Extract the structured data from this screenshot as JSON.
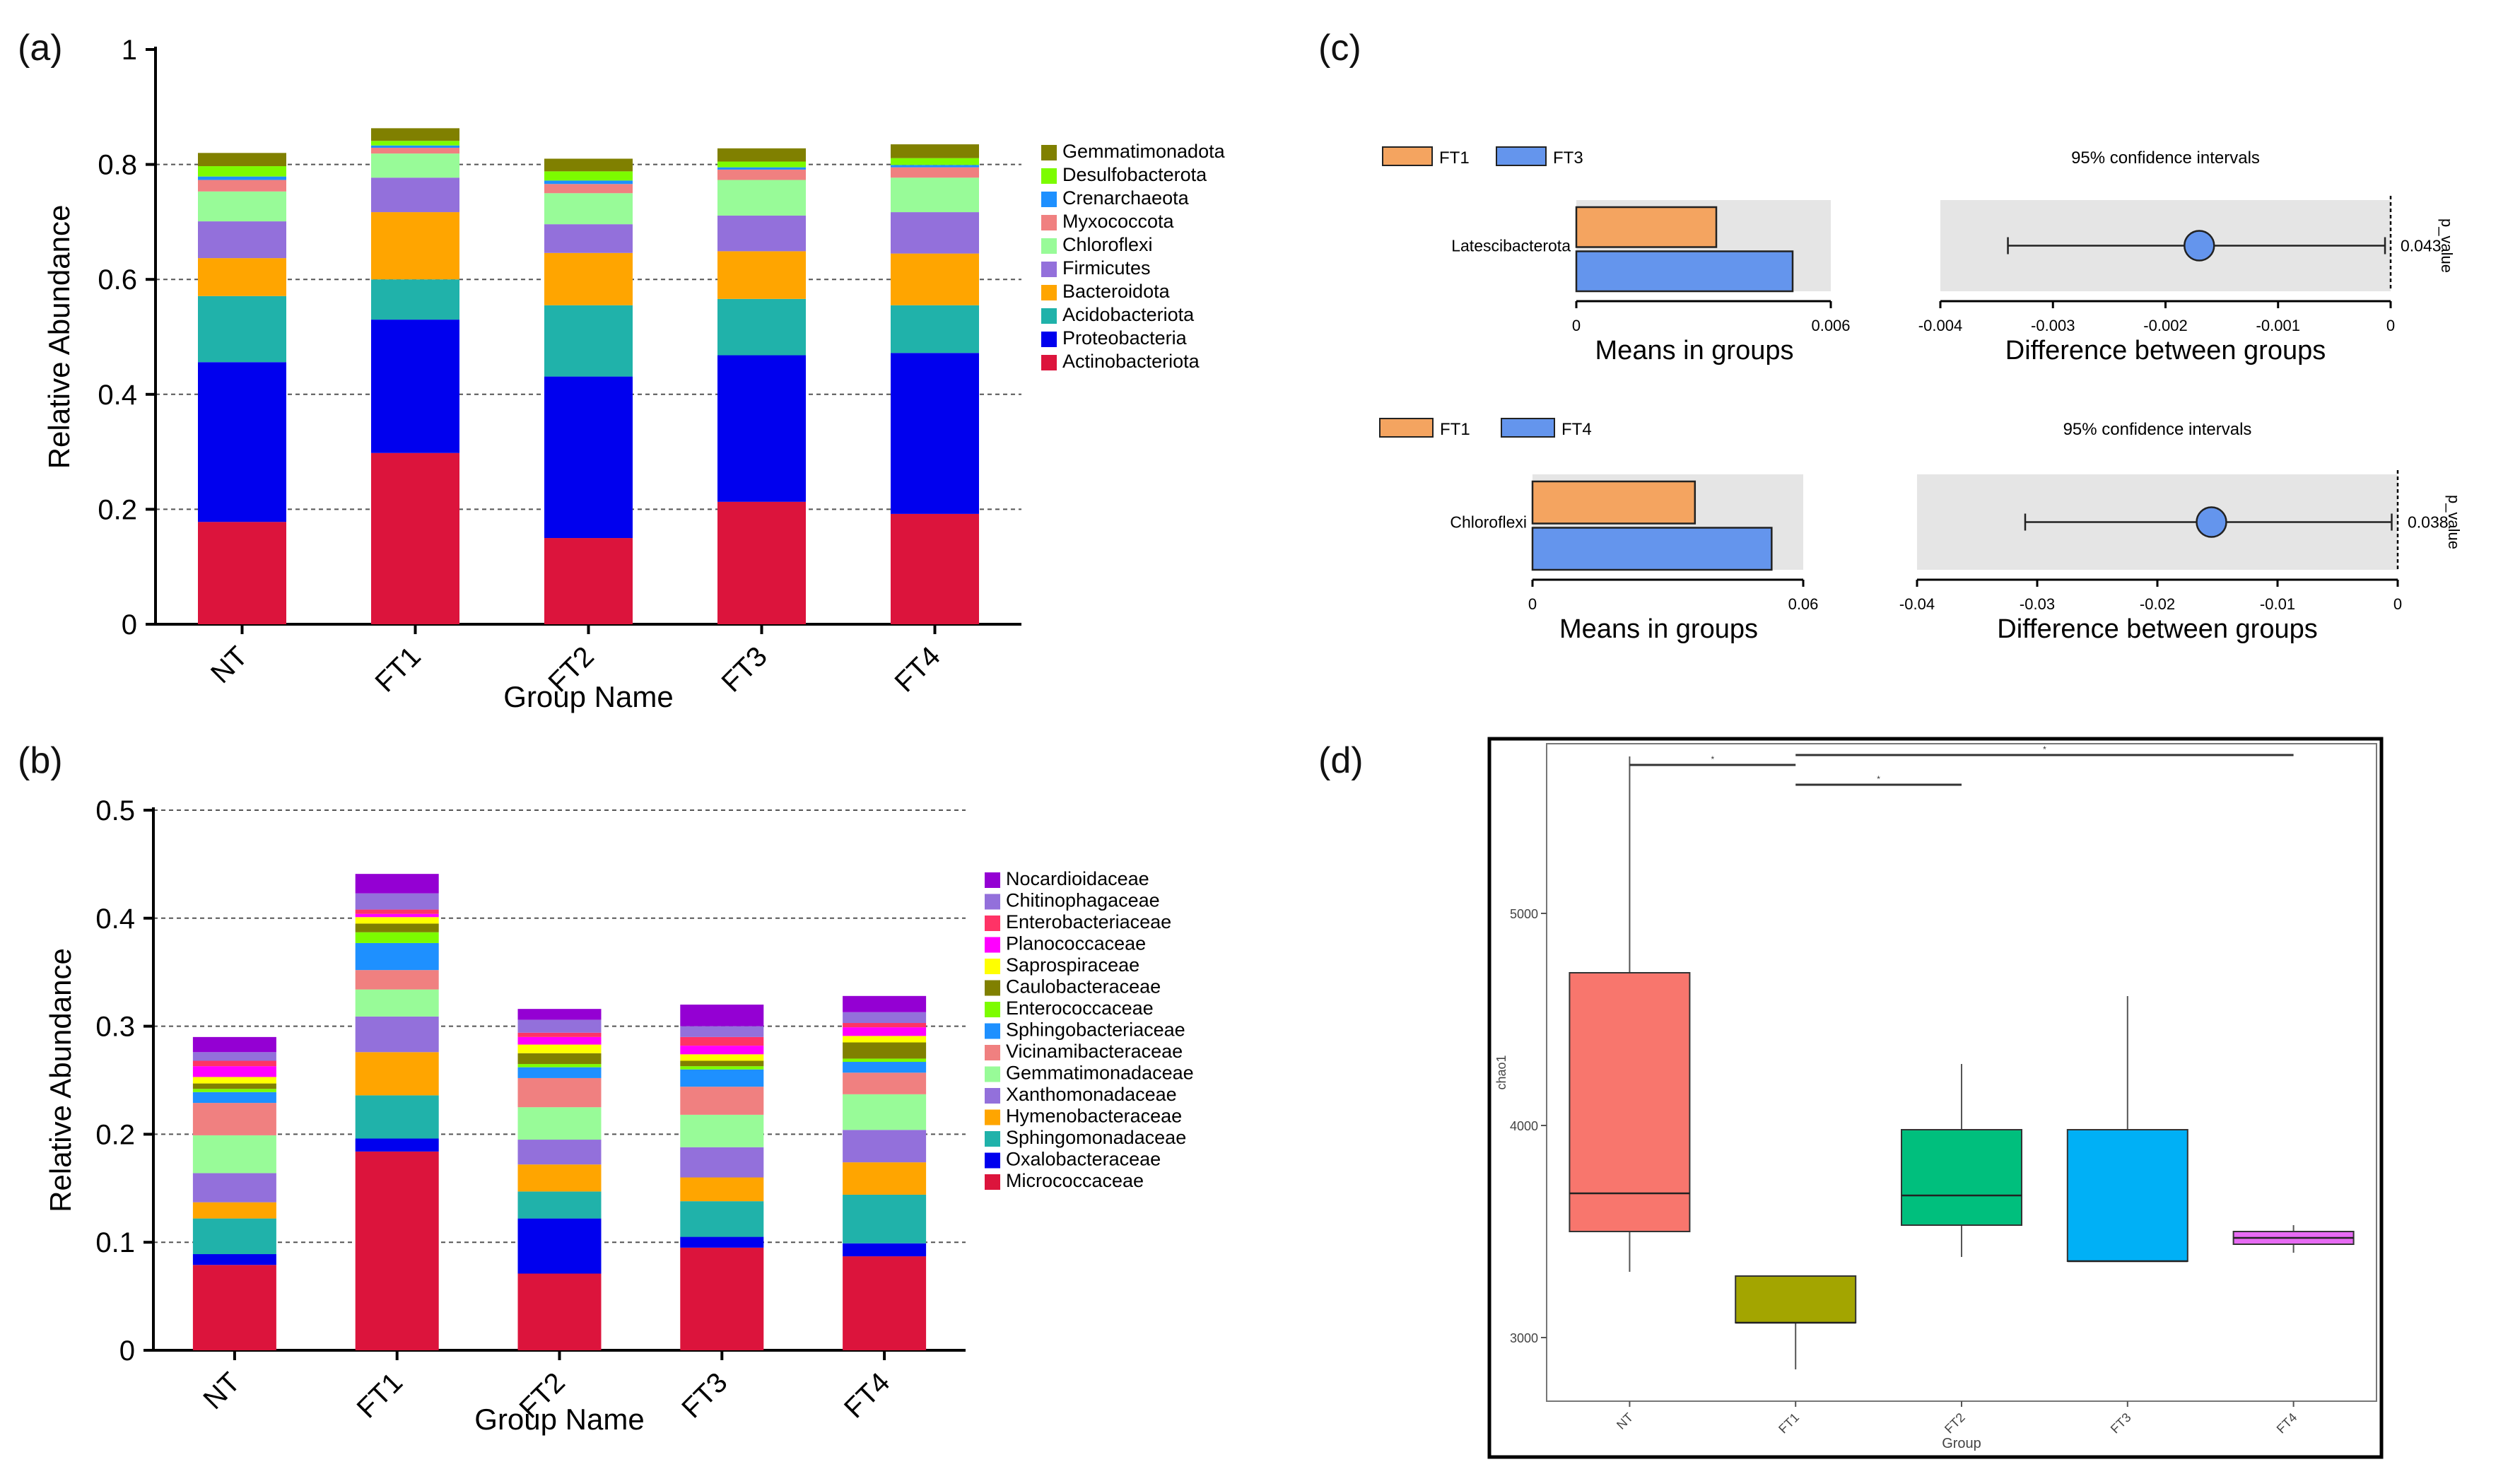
{
  "panels": {
    "a": {
      "label": "(a)"
    },
    "b": {
      "label": "(b)"
    },
    "c": {
      "label": "(c)"
    },
    "d": {
      "label": "(d)"
    }
  },
  "chart_data": [
    {
      "id": "a",
      "type": "bar",
      "stacked": true,
      "ylabel": "Relative Abundance",
      "xlabel": "Group Name",
      "ylim": [
        0,
        1
      ],
      "yticks": [
        0,
        0.2,
        0.4,
        0.6,
        0.8,
        1
      ],
      "yticklabels": [
        "0",
        "0.2",
        "0.4",
        "0.6",
        "0.8",
        "1"
      ],
      "grid": "dashed horizontal",
      "legend_position": "right",
      "categories": [
        "NT",
        "FT1",
        "FT2",
        "FT3",
        "FT4"
      ],
      "series": [
        {
          "name": "Actinobacteriota",
          "color": "#DC143C",
          "values": [
            0.178,
            0.298,
            0.15,
            0.213,
            0.192
          ]
        },
        {
          "name": "Proteobacteria",
          "color": "#0000EE",
          "values": [
            0.278,
            0.232,
            0.281,
            0.255,
            0.28
          ]
        },
        {
          "name": "Acidobacteriota",
          "color": "#20B2AA",
          "values": [
            0.115,
            0.07,
            0.124,
            0.098,
            0.083
          ]
        },
        {
          "name": "Bacteroidota",
          "color": "#FFA500",
          "values": [
            0.066,
            0.117,
            0.091,
            0.083,
            0.09
          ]
        },
        {
          "name": "Firmicutes",
          "color": "#9370DB",
          "values": [
            0.064,
            0.06,
            0.05,
            0.062,
            0.072
          ]
        },
        {
          "name": "Chloroflexi",
          "color": "#98FB98",
          "values": [
            0.052,
            0.042,
            0.054,
            0.062,
            0.06
          ]
        },
        {
          "name": "Myxococcota",
          "color": "#F08080",
          "values": [
            0.02,
            0.01,
            0.016,
            0.018,
            0.018
          ]
        },
        {
          "name": "Crenarchaeota",
          "color": "#1E90FF",
          "values": [
            0.006,
            0.004,
            0.006,
            0.004,
            0.004
          ]
        },
        {
          "name": "Desulfobacterota",
          "color": "#7CFC00",
          "values": [
            0.018,
            0.008,
            0.016,
            0.01,
            0.012
          ]
        },
        {
          "name": "Gemmatimonadota",
          "color": "#808000",
          "values": [
            0.023,
            0.022,
            0.022,
            0.023,
            0.024
          ]
        }
      ]
    },
    {
      "id": "b",
      "type": "bar",
      "stacked": true,
      "ylabel": "Relative Abundance",
      "xlabel": "Group Name",
      "ylim": [
        0,
        0.5
      ],
      "yticks": [
        0,
        0.1,
        0.2,
        0.3,
        0.4,
        0.5
      ],
      "yticklabels": [
        "0",
        "0.1",
        "0.2",
        "0.3",
        "0.4",
        "0.5"
      ],
      "grid": "dashed horizontal",
      "legend_position": "right",
      "categories": [
        "NT",
        "FT1",
        "FT2",
        "FT3",
        "FT4"
      ],
      "series": [
        {
          "name": "Micrococcaceae",
          "color": "#DC143C",
          "values": [
            0.079,
            0.184,
            0.071,
            0.095,
            0.087
          ]
        },
        {
          "name": "Oxalobacteraceae",
          "color": "#0000EE",
          "values": [
            0.01,
            0.012,
            0.051,
            0.01,
            0.012
          ]
        },
        {
          "name": "Sphingomonadaceae",
          "color": "#20B2AA",
          "values": [
            0.033,
            0.04,
            0.025,
            0.033,
            0.045
          ]
        },
        {
          "name": "Hymenobacteraceae",
          "color": "#FFA500",
          "values": [
            0.015,
            0.04,
            0.025,
            0.022,
            0.03
          ]
        },
        {
          "name": "Xanthomonadaceae",
          "color": "#9370DB",
          "values": [
            0.027,
            0.033,
            0.023,
            0.028,
            0.03
          ]
        },
        {
          "name": "Gemmatimonadaceae",
          "color": "#98FB98",
          "values": [
            0.035,
            0.025,
            0.03,
            0.03,
            0.033
          ]
        },
        {
          "name": "Vicinamibacteraceae",
          "color": "#F08080",
          "values": [
            0.03,
            0.018,
            0.027,
            0.026,
            0.02
          ]
        },
        {
          "name": "Sphingobacteriaceae",
          "color": "#1E90FF",
          "values": [
            0.01,
            0.025,
            0.01,
            0.016,
            0.01
          ]
        },
        {
          "name": "Enterococcaceae",
          "color": "#7CFC00",
          "values": [
            0.003,
            0.01,
            0.003,
            0.003,
            0.003
          ]
        },
        {
          "name": "Caulobacteraceae",
          "color": "#808000",
          "values": [
            0.005,
            0.008,
            0.01,
            0.005,
            0.015
          ]
        },
        {
          "name": "Saprospiraceae",
          "color": "#FFFF00",
          "values": [
            0.006,
            0.006,
            0.008,
            0.006,
            0.006
          ]
        },
        {
          "name": "Planococcaceae",
          "color": "#FF00FF",
          "values": [
            0.01,
            0.003,
            0.007,
            0.008,
            0.008
          ]
        },
        {
          "name": "Enterobacteriaceae",
          "color": "#FF3366",
          "values": [
            0.005,
            0.004,
            0.004,
            0.008,
            0.004
          ]
        },
        {
          "name": "Chitinophagaceae",
          "color": "#9370DB",
          "values": [
            0.008,
            0.015,
            0.012,
            0.01,
            0.01
          ]
        },
        {
          "name": "Nocardioidaceae",
          "color": "#9400D3",
          "values": [
            0.014,
            0.018,
            0.01,
            0.02,
            0.015
          ]
        }
      ]
    },
    {
      "id": "c1",
      "type": "bar",
      "orientation": "horizontal",
      "subtitle": "95% confidence intervals",
      "legend": [
        {
          "name": "FT1",
          "color": "#F4A460"
        },
        {
          "name": "FT3",
          "color": "#6495ED"
        }
      ],
      "feature": "Latescibacterota",
      "means": [
        0.0033,
        0.0051
      ],
      "means_xlabel": "Means in groups",
      "means_xlim": [
        0,
        0.006
      ],
      "means_ticklabels": [
        "0",
        "0.006"
      ],
      "diff_xlabel": "Difference between groups",
      "diff_xlim": [
        -0.004,
        0
      ],
      "diff_ticks": [
        -0.004,
        -0.003,
        -0.002,
        -0.001,
        0
      ],
      "diff_ticklabels": [
        "-0.004",
        "-0.003",
        "-0.002",
        "-0.001",
        "0"
      ],
      "difference": -0.0017,
      "ci": [
        -0.0034,
        -5e-05
      ],
      "p_value_label": "p_value",
      "p_value": "0.043"
    },
    {
      "id": "c2",
      "type": "bar",
      "orientation": "horizontal",
      "subtitle": "95% confidence intervals",
      "legend": [
        {
          "name": "FT1",
          "color": "#F4A460"
        },
        {
          "name": "FT4",
          "color": "#6495ED"
        }
      ],
      "feature": "Chloroflexi",
      "means": [
        0.036,
        0.053
      ],
      "means_xlabel": "Means in groups",
      "means_xlim": [
        0,
        0.06
      ],
      "means_ticklabels": [
        "0",
        "0.06"
      ],
      "diff_xlabel": "Difference between groups",
      "diff_xlim": [
        -0.04,
        0
      ],
      "diff_ticks": [
        -0.04,
        -0.03,
        -0.02,
        -0.01,
        0
      ],
      "diff_ticklabels": [
        "-0.04",
        "-0.03",
        "-0.02",
        "-0.01",
        "0"
      ],
      "difference": -0.0155,
      "ci": [
        -0.031,
        -0.0005
      ],
      "p_value_label": "p_value",
      "p_value": "0.038"
    },
    {
      "id": "d",
      "type": "box",
      "xlabel": "Group",
      "ylabel": "chao1",
      "ylim": [
        2700,
        5800
      ],
      "yticks": [
        3000,
        4000,
        5000
      ],
      "yticklabels": [
        "3000",
        "4000",
        "5000"
      ],
      "categories": [
        "NT",
        "FT1",
        "FT2",
        "FT3",
        "FT4"
      ],
      "boxes": [
        {
          "name": "NT",
          "color": "#F8766D",
          "min": 3310,
          "q1": 3500,
          "median": 3680,
          "q3": 4720,
          "max": 5740
        },
        {
          "name": "FT1",
          "color": "#A3A500",
          "min": 2850,
          "q1": 3070,
          "median": 3070,
          "q3": 3290,
          "max": 3290
        },
        {
          "name": "FT2",
          "color": "#00BF7D",
          "min": 3380,
          "q1": 3530,
          "median": 3670,
          "q3": 3980,
          "max": 4290
        },
        {
          "name": "FT3",
          "color": "#00B0F6",
          "min": 3360,
          "q1": 3360,
          "median": 3360,
          "q3": 3980,
          "max": 4610
        },
        {
          "name": "FT4",
          "color": "#E76BF3",
          "min": 3400,
          "q1": 3440,
          "median": 3470,
          "q3": 3500,
          "max": 3530
        }
      ],
      "significance_marks": [
        {
          "from": "NT",
          "to": "FT1",
          "label": "*"
        },
        {
          "from": "FT1",
          "to": "FT2",
          "label": "*"
        },
        {
          "from": "FT1",
          "to": "FT4",
          "label": "*"
        }
      ]
    }
  ]
}
